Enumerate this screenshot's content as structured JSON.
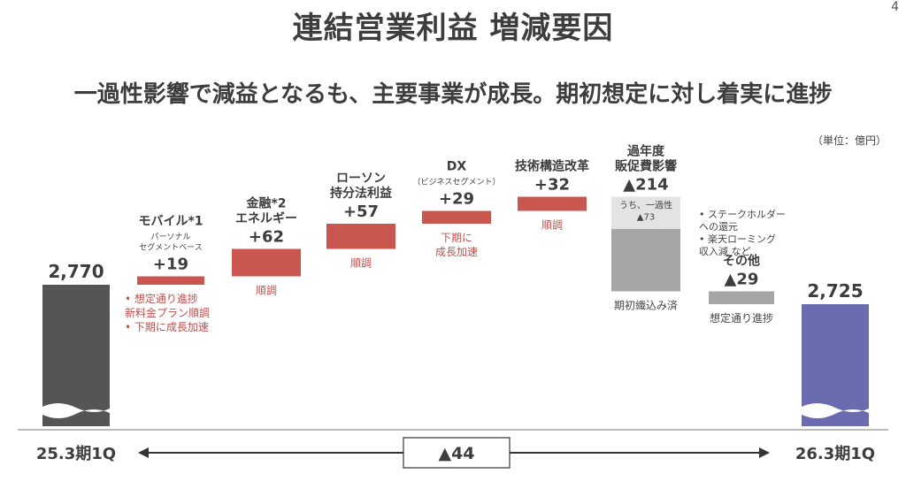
{
  "page": {
    "title": "連結営業利益 増減要因",
    "page_number": "4",
    "subtitle": "一過性影響で減益となるも、主要事業が成長。期初想定に対し着実に進捗",
    "unit": "（単位：億円）"
  },
  "colors": {
    "start_bar": "#555555",
    "end_bar": "#6b6bb0",
    "increase": "#c9574f",
    "decrease": "#a6a6a6",
    "one_time": "#e3e3e3",
    "note_text": "#c0504d"
  },
  "chart_data": {
    "type": "waterfall",
    "start": {
      "label": "25.3期1Q",
      "value": 2770,
      "value_label": "2,770"
    },
    "end": {
      "label": "26.3期1Q",
      "value": 2725,
      "value_label": "2,725"
    },
    "total_change": "▲44",
    "steps": [
      {
        "name_lines": [
          "モバイル*1"
        ],
        "sub_lines": [
          "パーソナル",
          "セグメントベース"
        ],
        "value": 19,
        "value_label": "+19",
        "notes": [
          "• 想定通り進捗",
          "  新料金プラン順調",
          "• 下期に成長加速"
        ]
      },
      {
        "name_lines": [
          "金融*2",
          "エネルギー"
        ],
        "sub_lines": [],
        "value": 62,
        "value_label": "+62",
        "notes": [
          "順調"
        ]
      },
      {
        "name_lines": [
          "ローソン",
          "持分法利益"
        ],
        "sub_lines": [],
        "value": 57,
        "value_label": "+57",
        "notes": [
          "順調"
        ]
      },
      {
        "name_lines": [
          "DX"
        ],
        "sub_lines": [
          "（ビジネスセグメント）"
        ],
        "value": 29,
        "value_label": "+29",
        "notes": [
          "下期に",
          "成長加速"
        ]
      },
      {
        "name_lines": [
          "技術構造改革"
        ],
        "sub_lines": [],
        "value": 32,
        "value_label": "+32",
        "notes": [
          "順調"
        ]
      },
      {
        "name_lines": [
          "過年度",
          "販促費影響"
        ],
        "sub_lines": [],
        "value": -214,
        "value_label": "▲214",
        "one_time_label": [
          "うち、一過性",
          "▲73"
        ],
        "one_time_value": -73,
        "notes": [
          "期初織込み済"
        ]
      },
      {
        "name_lines": [
          "その他"
        ],
        "sub_lines": [],
        "value": -29,
        "value_label": "▲29",
        "pre_notes": [
          "• ステークホルダー",
          "  への還元",
          "• 楽天ローミング",
          "  収入減 など"
        ],
        "notes": [
          "想定通り進捗"
        ]
      }
    ]
  }
}
